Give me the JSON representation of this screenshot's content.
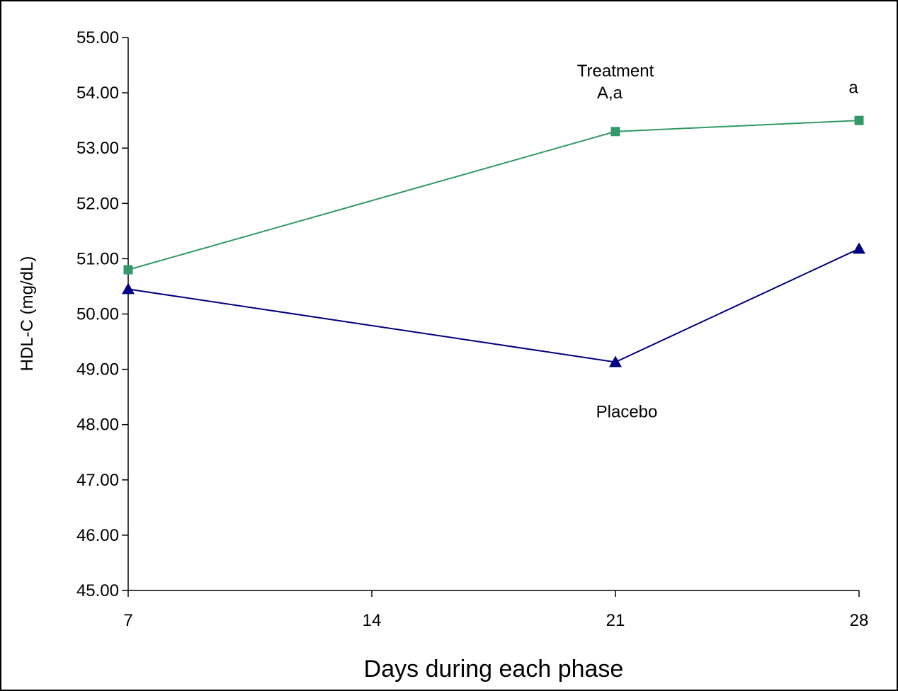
{
  "chart_data": {
    "type": "line",
    "xlabel": "Days during each phase",
    "ylabel": "HDL-C (mg/dL)",
    "x": [
      7,
      21,
      28
    ],
    "xticks": [
      "7",
      "14",
      "21",
      "28"
    ],
    "xlim": [
      7,
      28
    ],
    "ylim": [
      45,
      55
    ],
    "yticks": [
      "45.00",
      "46.00",
      "47.00",
      "48.00",
      "49.00",
      "50.00",
      "51.00",
      "52.00",
      "53.00",
      "54.00",
      "55.00"
    ],
    "grid": false,
    "series": [
      {
        "name": "Treatment",
        "x": [
          7,
          21,
          28
        ],
        "values": [
          50.8,
          53.3,
          53.5
        ],
        "color": "#339966",
        "marker": "square"
      },
      {
        "name": "Placebo",
        "x": [
          7,
          21,
          28
        ],
        "values": [
          50.45,
          49.13,
          51.18
        ],
        "color": "#000080",
        "marker": "triangle"
      }
    ],
    "annotations": [
      {
        "text": "A,a",
        "x": 21,
        "y": 54.0
      },
      {
        "text": "a",
        "x": 28,
        "y": 54.1
      }
    ]
  }
}
